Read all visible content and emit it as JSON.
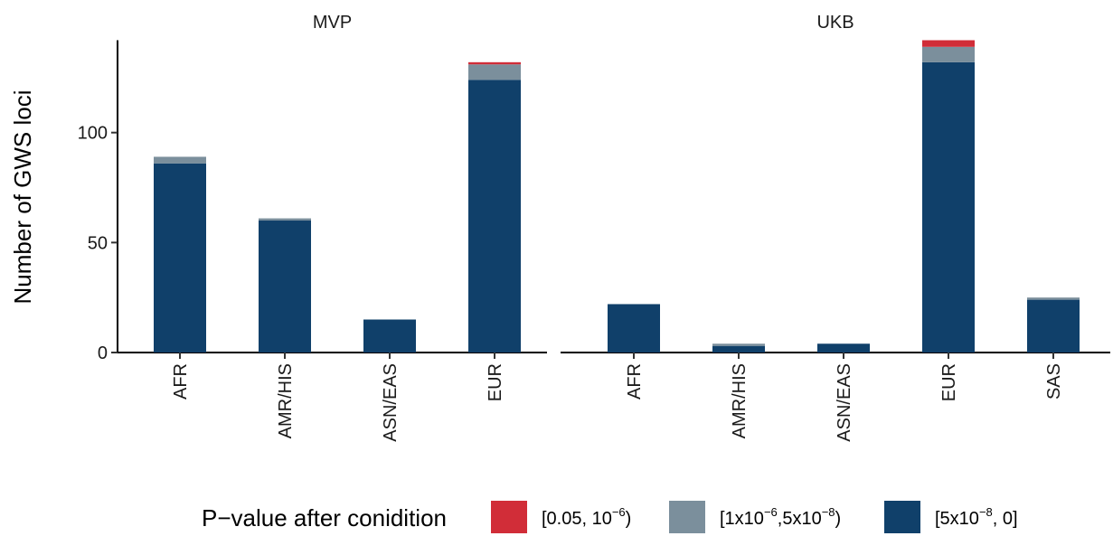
{
  "chart_data": {
    "type": "bar",
    "stacked": true,
    "ylabel": "Number of GWS loci",
    "xlabel": "",
    "ylim": [
      0,
      142
    ],
    "yticks": [
      0,
      50,
      100
    ],
    "grid": false,
    "legend": {
      "position": "bottom",
      "title": "P−value after conidition",
      "entries": [
        {
          "key": "p1",
          "color": "#d12d38",
          "base": "[0.05, 10",
          "sup": "−6",
          "tail": ")"
        },
        {
          "key": "p2",
          "color": "#7b8f9c",
          "base": "[1x10",
          "sup": "−6",
          "mid": ",5x10",
          "sup2": "−8",
          "tail": ")"
        },
        {
          "key": "p3",
          "color": "#10406a",
          "base": "[5x10",
          "sup": "−8",
          "tail": ", 0]"
        }
      ]
    },
    "facets": [
      {
        "title": "MVP",
        "categories": [
          "AFR",
          "AMR/HIS",
          "ASN/EAS",
          "EUR"
        ],
        "series": [
          {
            "key": "p3",
            "values": [
              86,
              60,
              15,
              124
            ]
          },
          {
            "key": "p2",
            "values": [
              3,
              1,
              0,
              7
            ]
          },
          {
            "key": "p1",
            "values": [
              0,
              0,
              0,
              1
            ]
          }
        ]
      },
      {
        "title": "UKB",
        "categories": [
          "AFR",
          "AMR/HIS",
          "ASN/EAS",
          "EUR",
          "SAS"
        ],
        "series": [
          {
            "key": "p3",
            "values": [
              22,
              3,
              4,
              132,
              24
            ]
          },
          {
            "key": "p2",
            "values": [
              0,
              1,
              0,
              7,
              1
            ]
          },
          {
            "key": "p1",
            "values": [
              0,
              0,
              0,
              3,
              0
            ]
          }
        ]
      }
    ]
  }
}
